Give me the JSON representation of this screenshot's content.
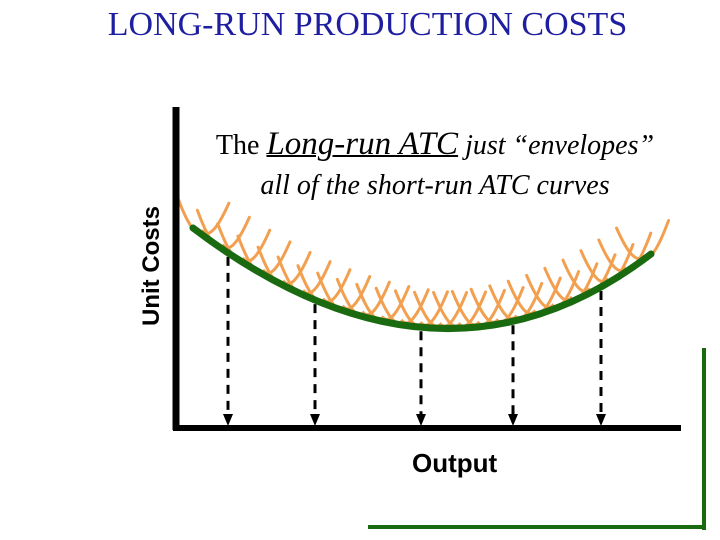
{
  "title": "LONG-RUN PRODUCTION COSTS",
  "caption": {
    "lead": "The ",
    "emphasis": "Long-run ATC",
    "rest": " just “envelopes”",
    "line2": "all of the short-run ATC curves"
  },
  "axes": {
    "ylabel": "Unit Costs",
    "xlabel": "Output"
  },
  "colors": {
    "title": "#1e1ea0",
    "long_run_atc": "#1a6a10",
    "short_run_atc": "#f2a050",
    "axes": "#000000",
    "corner_lines": "#1a6a10"
  },
  "short_run_atc_count": 24,
  "dropline_count": 5
}
